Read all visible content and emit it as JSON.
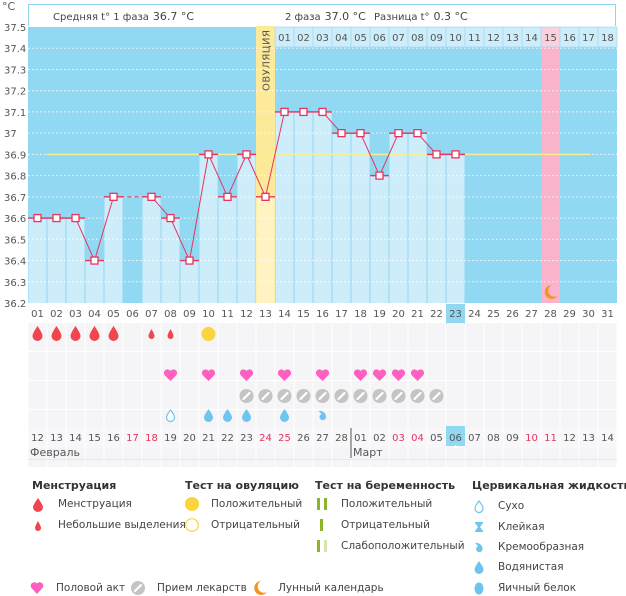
{
  "chart_data": {
    "type": "line",
    "title": "",
    "ylabel": "°C",
    "xlabel": "",
    "ylim": [
      36.2,
      37.5
    ],
    "yticks": [
      "37.5",
      "37.4",
      "37.3",
      "37.2",
      "37.1",
      "37",
      "36.9",
      "36.8",
      "36.7",
      "36.6",
      "36.5",
      "36.4",
      "36.3",
      "36.2"
    ],
    "cycle_days": [
      "01",
      "02",
      "03",
      "04",
      "05",
      "06",
      "07",
      "08",
      "09",
      "10",
      "11",
      "12",
      "13",
      "14",
      "15",
      "16",
      "17",
      "18",
      "19",
      "20",
      "21",
      "22",
      "23",
      "24",
      "25",
      "26",
      "27",
      "28",
      "29",
      "30",
      "31"
    ],
    "temperatures": [
      36.6,
      36.6,
      36.6,
      36.4,
      36.7,
      null,
      36.7,
      36.6,
      36.4,
      36.9,
      36.7,
      36.9,
      36.7,
      37.1,
      37.1,
      37.1,
      37.0,
      37.0,
      36.8,
      37.0,
      37.0,
      36.9,
      36.9,
      null,
      null,
      null,
      null,
      null,
      null,
      null,
      null
    ],
    "coverline": {
      "value": 36.9,
      "from_day": 2,
      "to_day": 30
    },
    "current_day": 23,
    "ovulation_day": 13,
    "ovulation_label": "ОВУЛЯЦИЯ",
    "highlight_day": 28,
    "phase2_days": [
      "01",
      "02",
      "03",
      "04",
      "05",
      "06",
      "07",
      "08",
      "09",
      "10",
      "11",
      "12",
      "13",
      "14",
      "15",
      "16",
      "17",
      "18"
    ],
    "phase2_start_day": 14,
    "moon_day": 28,
    "calendar_dates": [
      "12",
      "13",
      "14",
      "15",
      "16",
      "17",
      "18",
      "19",
      "20",
      "21",
      "22",
      "23",
      "24",
      "25",
      "26",
      "27",
      "28",
      "01",
      "02",
      "03",
      "04",
      "05",
      "06",
      "07",
      "08",
      "09",
      "10",
      "11",
      "12",
      "13",
      "14"
    ],
    "weekend_indices": [
      5,
      6,
      12,
      13,
      19,
      20,
      26,
      27
    ],
    "today_index": 22,
    "months": [
      {
        "label": "Февраль",
        "start_index": 0
      },
      {
        "label": "Март",
        "start_index": 17
      }
    ],
    "markers": {
      "menstruation": {
        "1": "heavy",
        "2": "heavy",
        "3": "heavy",
        "4": "heavy",
        "5": "heavy",
        "7": "light",
        "8": "light"
      },
      "ovulation_test": {
        "10": "positive"
      },
      "intercourse": [
        8,
        10,
        12,
        14,
        16,
        18,
        19,
        20,
        21
      ],
      "medication": [
        12,
        13,
        14,
        15,
        16,
        17,
        18,
        19,
        20,
        21,
        22
      ],
      "cervical_fluid": {
        "8": "dry",
        "10": "watery",
        "11": "watery",
        "12": "watery",
        "14": "watery",
        "16": "creamy"
      }
    }
  },
  "header": {
    "phase1_label": "Средняя t° 1 фаза",
    "phase1_value": "36.7 °C",
    "phase2_label": "2 фаза",
    "phase2_value": "37.0 °C",
    "diff_label": "Разница t°",
    "diff_value": "0.3 °C"
  },
  "colors": {
    "bg_blue": "#91d8f2",
    "bar_light": "#cdedfb",
    "ovulation": "#fde99a",
    "highlight_pink": "#f9b4cb",
    "line": "#e8345e",
    "coverline": "#f5ef8c",
    "menstruation": "#f0474e",
    "heart": "#ff5fbf",
    "pill": "#c4c4c4",
    "fluid": "#6fc3ef",
    "moon": "#f7941d",
    "yellow": "#fcd440",
    "pregnancy": "#8db52c"
  },
  "legend": {
    "menstruation": {
      "title": "Менструация",
      "items": [
        "Менструация",
        "Небольшие выделения"
      ]
    },
    "ovulation_test": {
      "title": "Тест на овуляцию",
      "items": [
        "Положительный",
        "Отрицательный"
      ]
    },
    "pregnancy_test": {
      "title": "Тест на беременность",
      "items": [
        "Положительный",
        "Отрицательный",
        "Слабоположительный"
      ]
    },
    "cervical_fluid": {
      "title": "Цервикальная жидкость",
      "items": [
        "Сухо",
        "Клейкая",
        "Кремообразная",
        "Водянистая",
        "Яичный белок"
      ]
    },
    "other": [
      "Половой акт",
      "Прием лекарств",
      "Лунный календарь"
    ]
  }
}
